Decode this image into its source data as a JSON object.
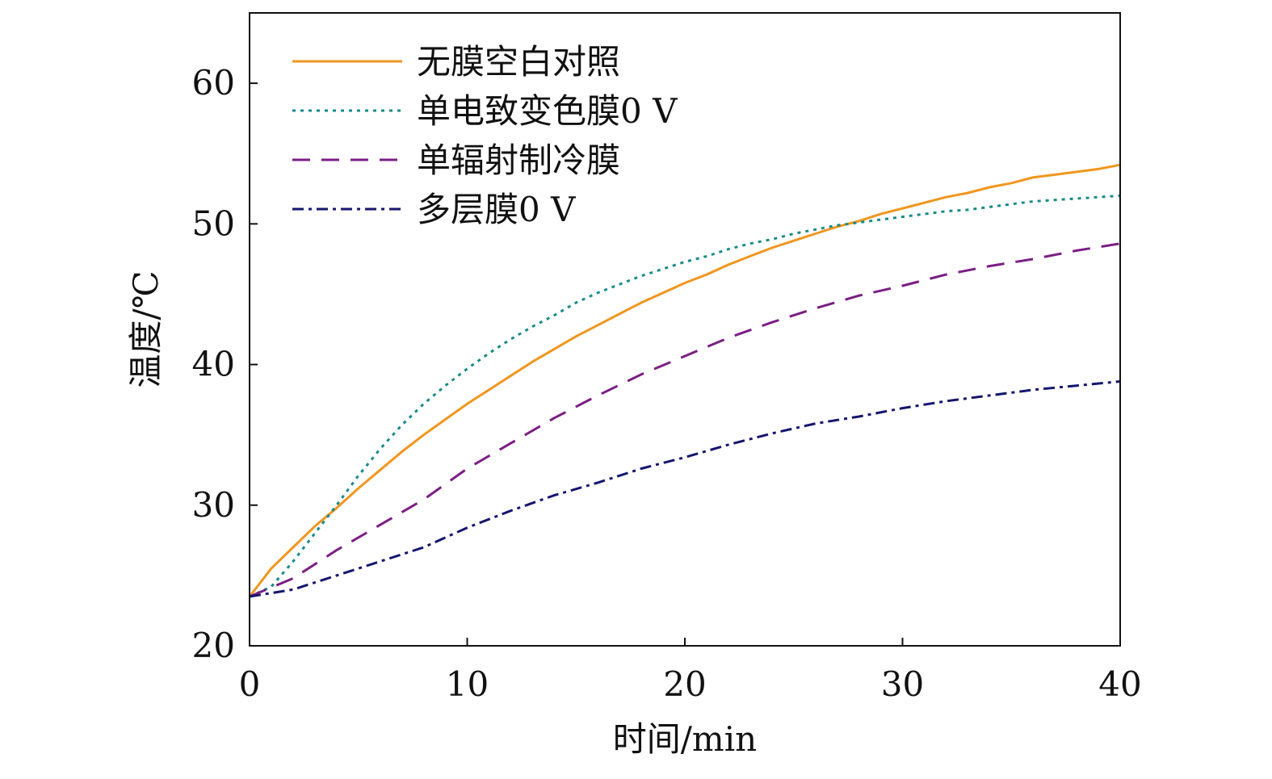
{
  "chart_data": {
    "type": "line",
    "title": "",
    "xlabel": "时间/min",
    "ylabel": "温度/℃",
    "xlim": [
      0,
      40
    ],
    "ylim": [
      20,
      65
    ],
    "xticks": [
      0,
      10,
      20,
      30,
      40
    ],
    "yticks": [
      20,
      30,
      40,
      50,
      60
    ],
    "grid": false,
    "legend_position": "top-left",
    "series": [
      {
        "name": "无膜空白对照",
        "color": "#f0961e",
        "dash": "solid",
        "x": [
          0,
          1,
          2,
          3,
          4,
          5,
          6,
          7,
          8,
          9,
          10,
          11,
          12,
          13,
          14,
          15,
          16,
          17,
          18,
          19,
          20,
          21,
          22,
          23,
          24,
          25,
          26,
          27,
          28,
          29,
          30,
          31,
          32,
          33,
          34,
          35,
          36,
          37,
          38,
          39,
          40
        ],
        "y": [
          23.5,
          25.5,
          27.0,
          28.5,
          29.8,
          31.2,
          32.5,
          33.8,
          35.0,
          36.1,
          37.2,
          38.2,
          39.2,
          40.2,
          41.1,
          42.0,
          42.8,
          43.6,
          44.4,
          45.1,
          45.8,
          46.4,
          47.1,
          47.7,
          48.3,
          48.8,
          49.3,
          49.8,
          50.2,
          50.7,
          51.1,
          51.5,
          51.9,
          52.2,
          52.6,
          52.9,
          53.3,
          53.5,
          53.7,
          53.9,
          54.2
        ]
      },
      {
        "name": "单电致变色膜0 V",
        "color": "#1a8a8a",
        "dash": "dotted",
        "x": [
          0,
          1,
          2,
          3,
          4,
          5,
          6,
          7,
          8,
          9,
          10,
          11,
          12,
          13,
          14,
          15,
          16,
          17,
          18,
          19,
          20,
          21,
          22,
          23,
          24,
          25,
          26,
          27,
          28,
          29,
          30,
          31,
          32,
          33,
          34,
          35,
          36,
          37,
          38,
          39,
          40
        ],
        "y": [
          23.5,
          24.2,
          26.0,
          28.0,
          30.0,
          32.1,
          34.0,
          35.7,
          37.2,
          38.5,
          39.7,
          40.8,
          41.8,
          42.7,
          43.5,
          44.4,
          45.1,
          45.7,
          46.3,
          46.8,
          47.3,
          47.7,
          48.2,
          48.6,
          48.9,
          49.3,
          49.6,
          49.9,
          50.1,
          50.3,
          50.5,
          50.7,
          50.9,
          51.0,
          51.2,
          51.4,
          51.6,
          51.7,
          51.8,
          51.9,
          52.0
        ]
      },
      {
        "name": "单辐射制冷膜",
        "color": "#7b1e84",
        "dash": "dashed",
        "x": [
          0,
          2,
          4,
          6,
          8,
          10,
          12,
          14,
          16,
          18,
          20,
          22,
          24,
          26,
          28,
          30,
          32,
          34,
          36,
          38,
          40
        ],
        "y": [
          23.5,
          24.8,
          26.8,
          28.6,
          30.4,
          32.6,
          34.4,
          36.2,
          37.8,
          39.3,
          40.6,
          41.9,
          43.0,
          44.0,
          44.9,
          45.6,
          46.4,
          47.0,
          47.5,
          48.1,
          48.6
        ]
      },
      {
        "name": "多层膜0 V",
        "color": "#14166e",
        "dash": "dashdot",
        "x": [
          0,
          2,
          4,
          6,
          8,
          10,
          12,
          14,
          16,
          18,
          20,
          22,
          24,
          26,
          28,
          30,
          32,
          34,
          36,
          38,
          40
        ],
        "y": [
          23.5,
          24.0,
          25.0,
          26.0,
          27.0,
          28.4,
          29.6,
          30.7,
          31.6,
          32.6,
          33.4,
          34.3,
          35.1,
          35.8,
          36.3,
          36.9,
          37.4,
          37.8,
          38.2,
          38.5,
          38.8
        ]
      }
    ]
  }
}
